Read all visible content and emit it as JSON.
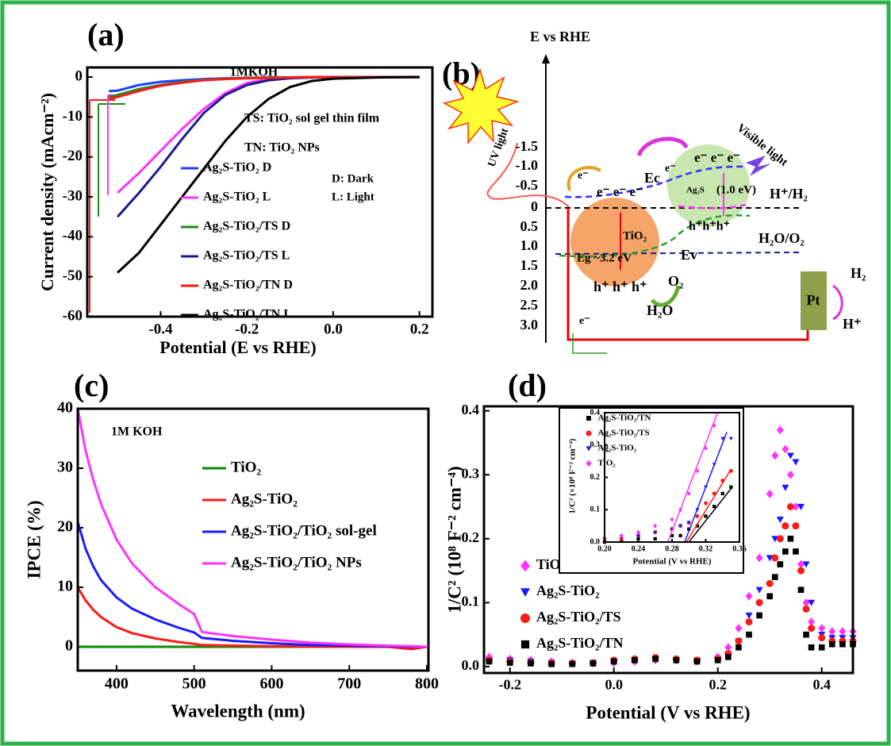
{
  "panels": [
    "(a)",
    "(b)",
    "(c)",
    "(d)"
  ],
  "chart_data": [
    {
      "type": "line",
      "xlabel": "Potential (E vs RHE)",
      "ylabel": "Current density (mAcm⁻²)",
      "xlim": [
        -0.57,
        0.23
      ],
      "ylim": [
        -60,
        2.4
      ],
      "xticks": [
        -0.4,
        -0.2,
        {
          "value": 0,
          "label": "0.0"
        },
        0.2
      ],
      "yticks": [
        0,
        -10,
        -20,
        -30,
        -40,
        -50,
        -60
      ],
      "annotations": [
        "1MKOH",
        "TS: TiO₂ sol gel thin film",
        "TN: TiO₂ NPs",
        "D: Dark",
        "L: Light"
      ],
      "x": [
        -0.52,
        -0.5,
        -0.45,
        -0.4,
        -0.35,
        -0.3,
        -0.25,
        -0.2,
        -0.15,
        -0.1,
        -0.05,
        0,
        0.1,
        0.2
      ],
      "series": [
        {
          "name": "Ag₂S-TiO₂ D",
          "color": "#1f3fff",
          "values": [
            -3.5,
            -3.4,
            -2,
            -1.2,
            -0.8,
            -0.5,
            -0.3,
            -0.2,
            -0.1,
            -0.1,
            0,
            0,
            0,
            0
          ]
        },
        {
          "name": "Ag₂S-TiO₂ L",
          "color": "#ff33ff",
          "values": [
            null,
            -29,
            -24,
            -18.5,
            -13,
            -8,
            -4,
            -1.5,
            -0.5,
            -0.2,
            -0.1,
            0,
            0,
            0
          ]
        },
        {
          "name": "Ag₂S-TiO₂/TS D",
          "color": "#1a8c1a",
          "values": [
            -5,
            -4.5,
            -3,
            -2,
            -1.2,
            -0.7,
            -0.4,
            -0.2,
            -0.1,
            -0.1,
            0,
            0,
            0,
            0
          ]
        },
        {
          "name": "Ag₂S-TiO₂/TS L",
          "color": "#1a1a8c",
          "values": [
            null,
            -35,
            -29,
            -22.5,
            -15.5,
            -9,
            -4.5,
            -2,
            -0.8,
            -0.3,
            -0.1,
            0,
            0,
            0
          ]
        },
        {
          "name": "Ag₂S-TiO₂/TN D",
          "color": "#ff1a1a",
          "values": [
            -5.5,
            -5,
            -3.5,
            -2.2,
            -1.4,
            -0.8,
            -0.5,
            -0.3,
            -0.2,
            -0.1,
            0,
            0,
            0,
            0
          ]
        },
        {
          "name": "Ag₂S-TiO₂/TN L",
          "color": "#000000",
          "values": [
            null,
            -49,
            -44,
            -37,
            -30,
            -23,
            -16,
            -10,
            -5.5,
            -2.5,
            -1,
            -0.4,
            -0.1,
            0
          ]
        }
      ]
    },
    {
      "type": "line",
      "xlabel": "Wavelength (nm)",
      "ylabel": "IPCE (%)",
      "xlim": [
        350,
        802
      ],
      "ylim": [
        -4,
        40
      ],
      "xticks": [
        400,
        500,
        600,
        700,
        800
      ],
      "yticks": [
        0,
        10,
        20,
        30,
        40
      ],
      "annotations": [
        "1M KOH"
      ],
      "x": [
        350,
        360,
        370,
        380,
        400,
        420,
        450,
        480,
        500,
        510,
        550,
        600,
        650,
        700,
        750,
        780,
        800
      ],
      "series": [
        {
          "name": "TiO₂",
          "color": "#0a8a0a",
          "values": [
            0,
            0,
            0,
            0,
            0,
            0,
            0,
            0,
            0,
            0,
            0,
            0,
            0,
            0,
            0,
            0,
            0
          ]
        },
        {
          "name": "Ag₂S-TiO₂",
          "color": "#ff1a1a",
          "values": [
            10,
            7.8,
            6.2,
            5,
            3.3,
            2.3,
            1.4,
            0.8,
            0.5,
            0.3,
            0.2,
            0.1,
            0.05,
            0,
            0,
            -0.4,
            0
          ]
        },
        {
          "name": "Ag₂S-TiO₂/TiO₂ sol-gel",
          "color": "#1a1aff",
          "values": [
            21,
            16.5,
            13.5,
            11.2,
            8.3,
            6.4,
            4.6,
            3.2,
            2.4,
            1.5,
            1,
            0.6,
            0.3,
            0.2,
            0.1,
            0,
            0
          ]
        },
        {
          "name": "Ag₂S-TiO₂/TiO₂ NPs",
          "color": "#ff33ff",
          "values": [
            40,
            33,
            28,
            24,
            18,
            14,
            10,
            7.2,
            5.5,
            2.5,
            1.8,
            1.2,
            0.7,
            0.4,
            0.2,
            0.1,
            0
          ]
        }
      ]
    },
    {
      "type": "scatter",
      "xlabel": "Potential  (V vs RHE)",
      "ylabel": "1/C² (10⁸ F⁻² cm⁻⁴)",
      "xlim": [
        -0.25,
        0.46
      ],
      "ylim": [
        -0.01,
        0.407
      ],
      "xticks": [
        -0.2,
        {
          "value": 0,
          "label": "0.0"
        },
        0.2,
        0.4
      ],
      "yticks": [
        {
          "value": 0,
          "label": "0.0"
        },
        0.1,
        0.2,
        0.3,
        0.4
      ],
      "x": [
        -0.24,
        -0.2,
        -0.16,
        -0.12,
        -0.08,
        -0.04,
        0,
        0.04,
        0.08,
        0.12,
        0.16,
        0.2,
        0.22,
        0.24,
        0.26,
        0.28,
        0.3,
        0.31,
        0.32,
        0.33,
        0.34,
        0.35,
        0.36,
        0.37,
        0.38,
        0.4,
        0.42,
        0.44,
        0.46
      ],
      "series": [
        {
          "name": "TiO₂",
          "color": "#ff33ff",
          "marker": "diamond",
          "values": [
            0.015,
            0.012,
            0.01,
            0.008,
            0.006,
            0.005,
            0.006,
            0.008,
            0.01,
            0.01,
            0.008,
            0.015,
            0.03,
            0.06,
            0.11,
            0.17,
            0.27,
            0.33,
            0.37,
            0.34,
            0.3,
            0.25,
            0.16,
            0.1,
            0.07,
            0.06,
            0.055,
            0.055,
            0.055
          ]
        },
        {
          "name": "Ag₂S-TiO₂",
          "color": "#1a1aff",
          "marker": "triangle-down",
          "values": [
            0.01,
            0.01,
            0.008,
            0.006,
            0.005,
            0.006,
            0.008,
            0.01,
            0.012,
            0.01,
            0.01,
            0.012,
            0.02,
            0.04,
            0.08,
            0.12,
            0.17,
            0.2,
            0.23,
            0.28,
            0.33,
            0.32,
            0.25,
            0.16,
            0.1,
            0.05,
            0.045,
            0.045,
            0.045
          ]
        },
        {
          "name": "Ag₂S-TiO₂/TS",
          "color": "#ff1a1a",
          "marker": "circle",
          "values": [
            0.01,
            0.008,
            0.006,
            0.005,
            0.005,
            0.006,
            0.01,
            0.012,
            0.014,
            0.012,
            0.01,
            0.012,
            0.02,
            0.04,
            0.07,
            0.1,
            0.13,
            0.17,
            0.2,
            0.22,
            0.25,
            0.22,
            0.15,
            0.09,
            0.06,
            0.045,
            0.04,
            0.04,
            0.04
          ]
        },
        {
          "name": "Ag₂S-TiO₂/TN",
          "color": "#000000",
          "marker": "square",
          "values": [
            0.008,
            0.006,
            0.005,
            0.004,
            0.004,
            0.005,
            0.008,
            0.01,
            0.012,
            0.01,
            0.008,
            0.01,
            0.015,
            0.03,
            0.05,
            0.08,
            0.11,
            0.14,
            0.16,
            0.18,
            0.2,
            0.18,
            0.12,
            0.05,
            0.03,
            0.03,
            0.035,
            0.035,
            0.035
          ]
        }
      ]
    },
    {
      "type": "scatter",
      "xlabel": "Potential  (V vs RHE)",
      "ylabel": "1/C² (×10⁸ F⁻² cm⁻⁴)",
      "xlim": [
        0.2,
        0.36
      ],
      "ylim": [
        0,
        0.4
      ],
      "xticks": [
        {
          "value": 0.2,
          "label": "0.20"
        },
        0.24,
        0.28,
        0.32,
        0.36
      ],
      "yticks": [
        {
          "value": 0,
          "label": "0.0"
        },
        0.1,
        0.2,
        0.3,
        0.4
      ],
      "x": [
        0.2,
        0.22,
        0.24,
        0.26,
        0.28,
        0.29,
        0.3,
        0.31,
        0.32,
        0.33,
        0.34,
        0.35
      ],
      "series": [
        {
          "name": "Ag₂S-TiO₂/TN",
          "color": "#000000",
          "marker": "square",
          "values": [
            0,
            0.005,
            0.01,
            0.01,
            0.02,
            0.02,
            0.04,
            0.05,
            0.08,
            0.11,
            0.15,
            0.17
          ],
          "fit_x": [
            0.3,
            0.35
          ],
          "fit_y": [
            0,
            0.165
          ]
        },
        {
          "name": "Ag₂S-TiO₂/TS",
          "color": "#ff1a1a",
          "marker": "circle",
          "values": [
            0.01,
            0.01,
            0.02,
            0.03,
            0.04,
            0.05,
            0.06,
            0.08,
            0.12,
            0.15,
            0.19,
            0.22
          ],
          "fit_x": [
            0.297,
            0.35
          ],
          "fit_y": [
            0,
            0.225
          ]
        },
        {
          "name": "Ag₂S-TiO₂",
          "color": "#1a1aff",
          "marker": "triangle-down",
          "values": [
            0.01,
            0.015,
            0.02,
            0.03,
            0.04,
            0.05,
            0.06,
            0.1,
            0.17,
            0.24,
            0.32,
            0.32
          ],
          "fit_x": [
            0.295,
            0.345
          ],
          "fit_y": [
            0,
            0.34
          ]
        },
        {
          "name": "TiO₂",
          "color": "#ff33ff",
          "marker": "diamond",
          "values": [
            0.01,
            0.02,
            0.03,
            0.05,
            0.07,
            0.1,
            0.15,
            0.22,
            0.29,
            0.36,
            null,
            null
          ],
          "fit_x": [
            0.275,
            0.334
          ],
          "fit_y": [
            0,
            0.4
          ]
        }
      ]
    }
  ],
  "diagram": {
    "axis_title": "E vs RHE",
    "energy_labels": [
      "-1.5",
      "-1.0",
      "-0.5",
      "0",
      "0.5",
      "1.0",
      "1.5",
      "2.0",
      "2.5",
      "3.0"
    ],
    "uv_light": "UV light",
    "visible_light": "Visible light",
    "e_excite": "e⁻",
    "ec": "Ec",
    "ag2s": "Ag₂S",
    "ag2s_gap": "(1.0 eV)",
    "ag2s_electrons": "e⁻ e⁻ e⁻",
    "ag2s_e": "e⁻",
    "tio2_electrons": "e⁻ e⁻ e⁻",
    "tio2": "TiO₂",
    "eg": "Eg ~3.2 eV",
    "tio2_holes": "h⁺ h⁺ h⁺",
    "ag2s_holes": "h⁺h⁺h⁺",
    "h_h2": "H⁺/H₂",
    "h2o_o2": "H₂O/O₂",
    "ev": "Ev",
    "o2": "O₂",
    "h2o": "H₂O",
    "pt": "Pt",
    "h2": "H₂",
    "hplus": "H⁺",
    "e_circuit": "e⁻"
  }
}
